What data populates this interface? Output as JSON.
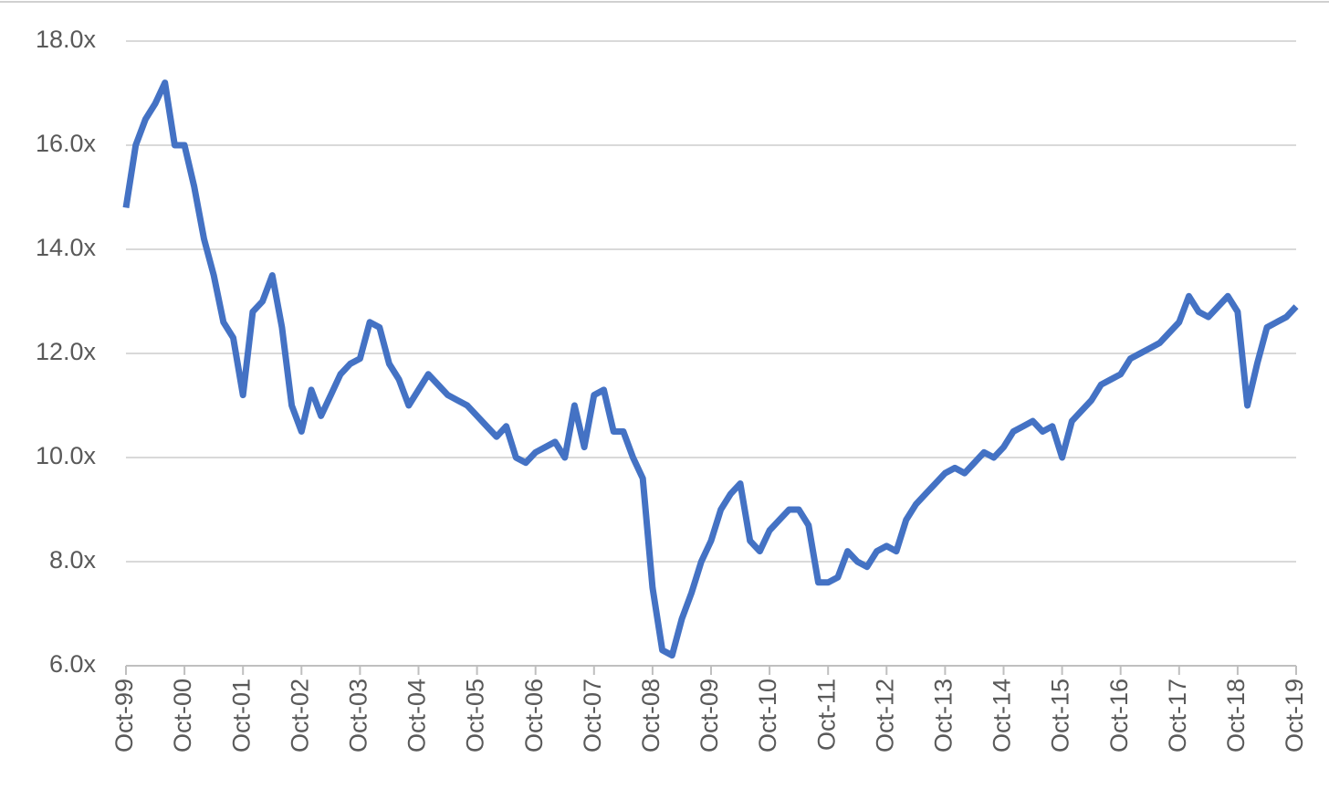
{
  "chart_data": {
    "type": "line",
    "categories": [
      "Oct-99",
      null,
      null,
      null,
      null,
      null,
      "Oct-00",
      null,
      null,
      null,
      null,
      null,
      "Oct-01",
      null,
      null,
      null,
      null,
      null,
      "Oct-02",
      null,
      null,
      null,
      null,
      null,
      "Oct-03",
      null,
      null,
      null,
      null,
      null,
      "Oct-04",
      null,
      null,
      null,
      null,
      null,
      "Oct-05",
      null,
      null,
      null,
      null,
      null,
      "Oct-06",
      null,
      null,
      null,
      null,
      null,
      "Oct-07",
      null,
      null,
      null,
      null,
      null,
      "Oct-08",
      null,
      null,
      null,
      null,
      null,
      "Oct-09",
      null,
      null,
      null,
      null,
      null,
      "Oct-10",
      null,
      null,
      null,
      null,
      null,
      "Oct-11",
      null,
      null,
      null,
      null,
      null,
      "Oct-12",
      null,
      null,
      null,
      null,
      null,
      "Oct-13",
      null,
      null,
      null,
      null,
      null,
      "Oct-14",
      null,
      null,
      null,
      null,
      null,
      "Oct-15",
      null,
      null,
      null,
      null,
      null,
      "Oct-16",
      null,
      null,
      null,
      null,
      null,
      "Oct-17",
      null,
      null,
      null,
      null,
      null,
      "Oct-18",
      null,
      null,
      null,
      null,
      null,
      "Oct-19"
    ],
    "series": [
      {
        "color": "#4472c4",
        "values": [
          14.8,
          16.0,
          16.5,
          16.8,
          17.2,
          16.0,
          16.0,
          15.2,
          14.2,
          13.5,
          12.6,
          12.3,
          11.2,
          12.8,
          13.0,
          13.5,
          12.5,
          11.0,
          10.5,
          11.3,
          10.8,
          11.2,
          11.6,
          11.8,
          11.9,
          12.6,
          12.5,
          11.8,
          11.5,
          11.0,
          11.3,
          11.6,
          11.4,
          11.2,
          11.1,
          11.0,
          10.8,
          10.6,
          10.4,
          10.6,
          10.0,
          9.9,
          10.1,
          10.2,
          10.3,
          10.0,
          11.0,
          10.2,
          11.2,
          11.3,
          10.5,
          10.5,
          10.0,
          9.6,
          7.5,
          6.3,
          6.2,
          6.9,
          7.4,
          8.0,
          8.4,
          9.0,
          9.3,
          9.5,
          8.4,
          8.2,
          8.6,
          8.8,
          9.0,
          9.0,
          8.7,
          7.6,
          7.6,
          7.7,
          8.2,
          8.0,
          7.9,
          8.2,
          8.3,
          8.2,
          8.8,
          9.1,
          9.3,
          9.5,
          9.7,
          9.8,
          9.7,
          9.9,
          10.1,
          10.0,
          10.2,
          10.5,
          10.6,
          10.7,
          10.5,
          10.6,
          10.0,
          10.7,
          10.9,
          11.1,
          11.4,
          11.5,
          11.6,
          11.9,
          12.0,
          12.1,
          12.2,
          12.4,
          12.6,
          13.1,
          12.8,
          12.7,
          12.9,
          13.1,
          12.8,
          11.0,
          11.8,
          12.5,
          12.6,
          12.7,
          12.9
        ]
      }
    ],
    "ylim": [
      6,
      18
    ],
    "yticks": [
      {
        "value": 6,
        "label": "6.0x"
      },
      {
        "value": 8,
        "label": "8.0x"
      },
      {
        "value": 10,
        "label": "10.0x"
      },
      {
        "value": 12,
        "label": "12.0x"
      },
      {
        "value": 14,
        "label": "14.0x"
      },
      {
        "value": 16,
        "label": "16.0x"
      },
      {
        "value": 18,
        "label": "18.0x"
      }
    ],
    "grid": true
  }
}
